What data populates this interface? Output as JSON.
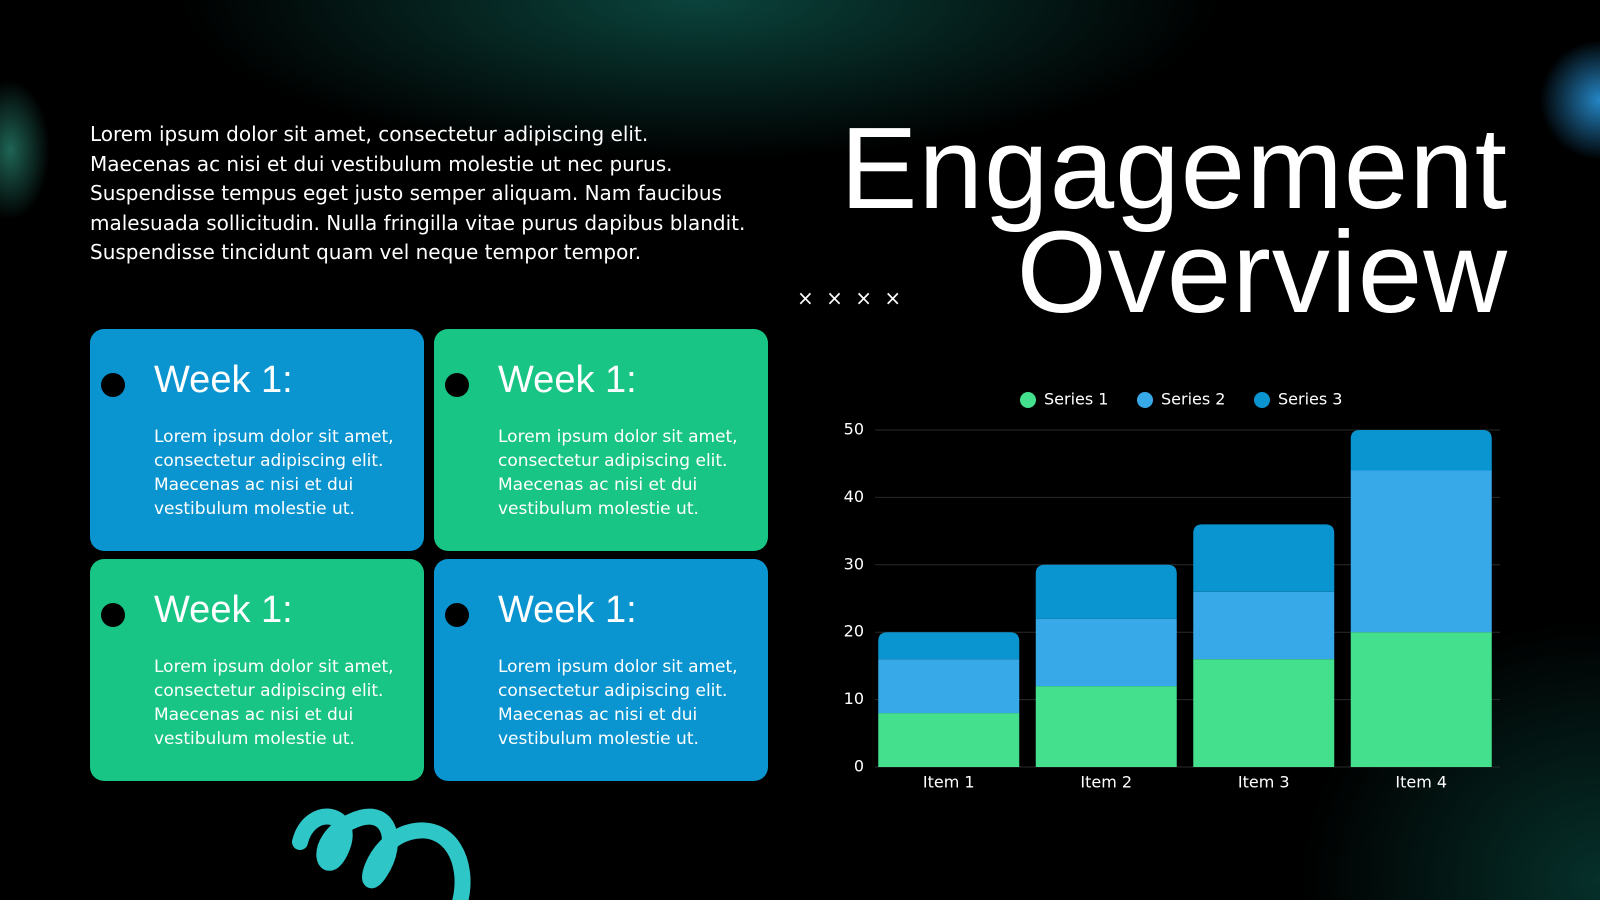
{
  "slide": {
    "intro": "Lorem ipsum dolor sit amet, consectetur adipiscing elit. Maecenas ac nisi et dui vestibulum molestie ut nec purus. Suspendisse tempus eget justo semper aliquam. Nam faucibus malesuada sollicitudin. Nulla fringilla vitae purus dapibus blandit. Suspendisse tincidunt quam vel neque tempor tempor.",
    "title_lines": [
      "Engagement",
      "Overview"
    ],
    "decoration": "× × × ×",
    "cards": [
      {
        "title": "Week 1:",
        "body": "Lorem ipsum dolor sit amet, consectetur adipiscing elit. Maecenas ac nisi et dui vestibulum molestie ut.",
        "color": "#0b95d0"
      },
      {
        "title": "Week 1:",
        "body": "Lorem ipsum dolor sit amet, consectetur adipiscing elit. Maecenas ac nisi et dui vestibulum molestie ut.",
        "color": "#19c584"
      },
      {
        "title": "Week 1:",
        "body": "Lorem ipsum dolor sit amet, consectetur adipiscing elit. Maecenas ac nisi et dui vestibulum molestie ut.",
        "color": "#19c584"
      },
      {
        "title": "Week 1:",
        "body": "Lorem ipsum dolor sit amet, consectetur adipiscing elit. Maecenas ac nisi et dui vestibulum molestie ut.",
        "color": "#0b95d0"
      }
    ]
  },
  "chart_data": {
    "type": "stacked_bar",
    "categories": [
      "Item 1",
      "Item 2",
      "Item 3",
      "Item 4"
    ],
    "series": [
      {
        "name": "Series 1",
        "color": "#45e08e",
        "values": [
          8,
          12,
          16,
          20
        ]
      },
      {
        "name": "Series 2",
        "color": "#38a9e8",
        "values": [
          8,
          10,
          10,
          24
        ]
      },
      {
        "name": "Series 3",
        "color": "#0b95d0",
        "values": [
          4,
          8,
          10,
          6
        ]
      }
    ],
    "ylim": [
      0,
      50
    ],
    "yticks": [
      0,
      10,
      20,
      30,
      40,
      50
    ],
    "grid": true,
    "legend": "top"
  }
}
